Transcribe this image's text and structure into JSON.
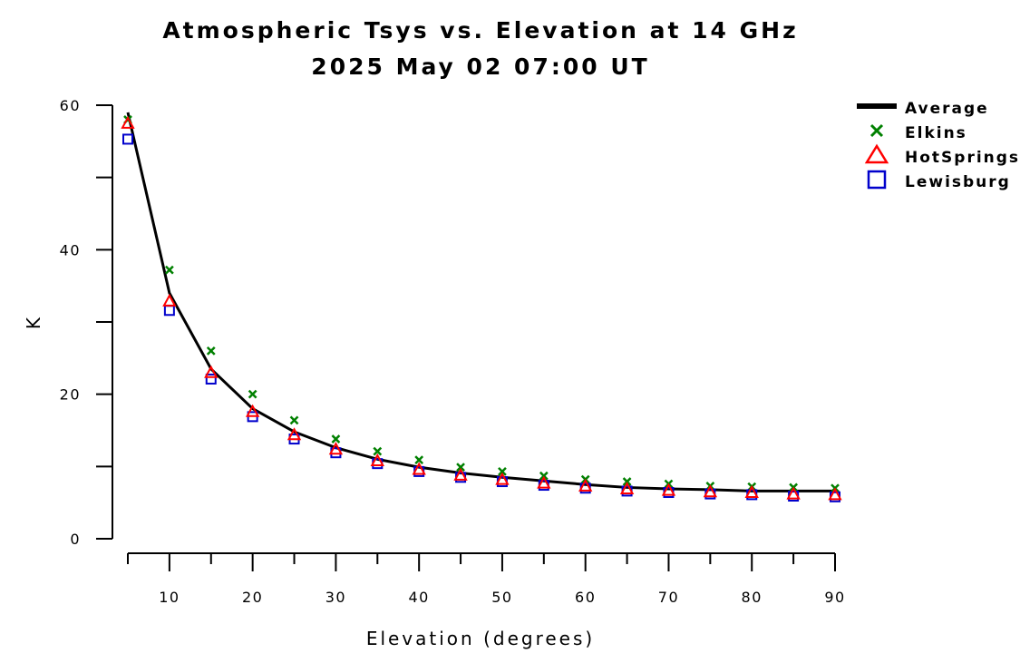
{
  "chart_data": {
    "type": "line",
    "title": "Atmospheric Tsys vs. Elevation at 14 GHz",
    "subtitle": "2025 May 02 07:00 UT",
    "xlabel": "Elevation (degrees)",
    "ylabel": "K",
    "xlim": [
      5,
      90
    ],
    "ylim": [
      0,
      60
    ],
    "x_ticks": [
      "10",
      "20",
      "30",
      "40",
      "50",
      "60",
      "70",
      "80",
      "90"
    ],
    "y_ticks": [
      "0",
      "20",
      "40",
      "60"
    ],
    "x": [
      5,
      10,
      15,
      20,
      25,
      30,
      35,
      40,
      45,
      50,
      55,
      60,
      65,
      70,
      75,
      80,
      85,
      90
    ],
    "legend_position": "top-right",
    "grid": false,
    "series": [
      {
        "name": "Average",
        "style": "line",
        "color": "#000000",
        "values": [
          59.0,
          34.0,
          23.5,
          18.0,
          14.8,
          12.6,
          11.0,
          9.9,
          9.1,
          8.5,
          8.0,
          7.5,
          7.1,
          6.9,
          6.8,
          6.6,
          6.6,
          6.6
        ]
      },
      {
        "name": "Elkins",
        "style": "x-marker",
        "color": "#008000",
        "values": [
          58.0,
          37.2,
          26.0,
          20.0,
          16.4,
          13.8,
          12.1,
          10.9,
          9.9,
          9.3,
          8.7,
          8.2,
          7.9,
          7.6,
          7.3,
          7.2,
          7.1,
          7.0
        ]
      },
      {
        "name": "HotSprings",
        "style": "triangle-marker",
        "color": "#ff0000",
        "values": [
          57.5,
          32.9,
          23.0,
          17.6,
          14.4,
          12.4,
          10.8,
          9.6,
          8.8,
          8.2,
          7.7,
          7.3,
          6.9,
          6.7,
          6.5,
          6.4,
          6.2,
          6.1
        ]
      },
      {
        "name": "Lewisburg",
        "style": "square-marker",
        "color": "#0000cc",
        "values": [
          55.3,
          31.6,
          22.1,
          16.9,
          13.8,
          11.9,
          10.4,
          9.3,
          8.5,
          7.9,
          7.4,
          7.0,
          6.6,
          6.4,
          6.2,
          6.1,
          5.9,
          5.8
        ]
      }
    ]
  }
}
